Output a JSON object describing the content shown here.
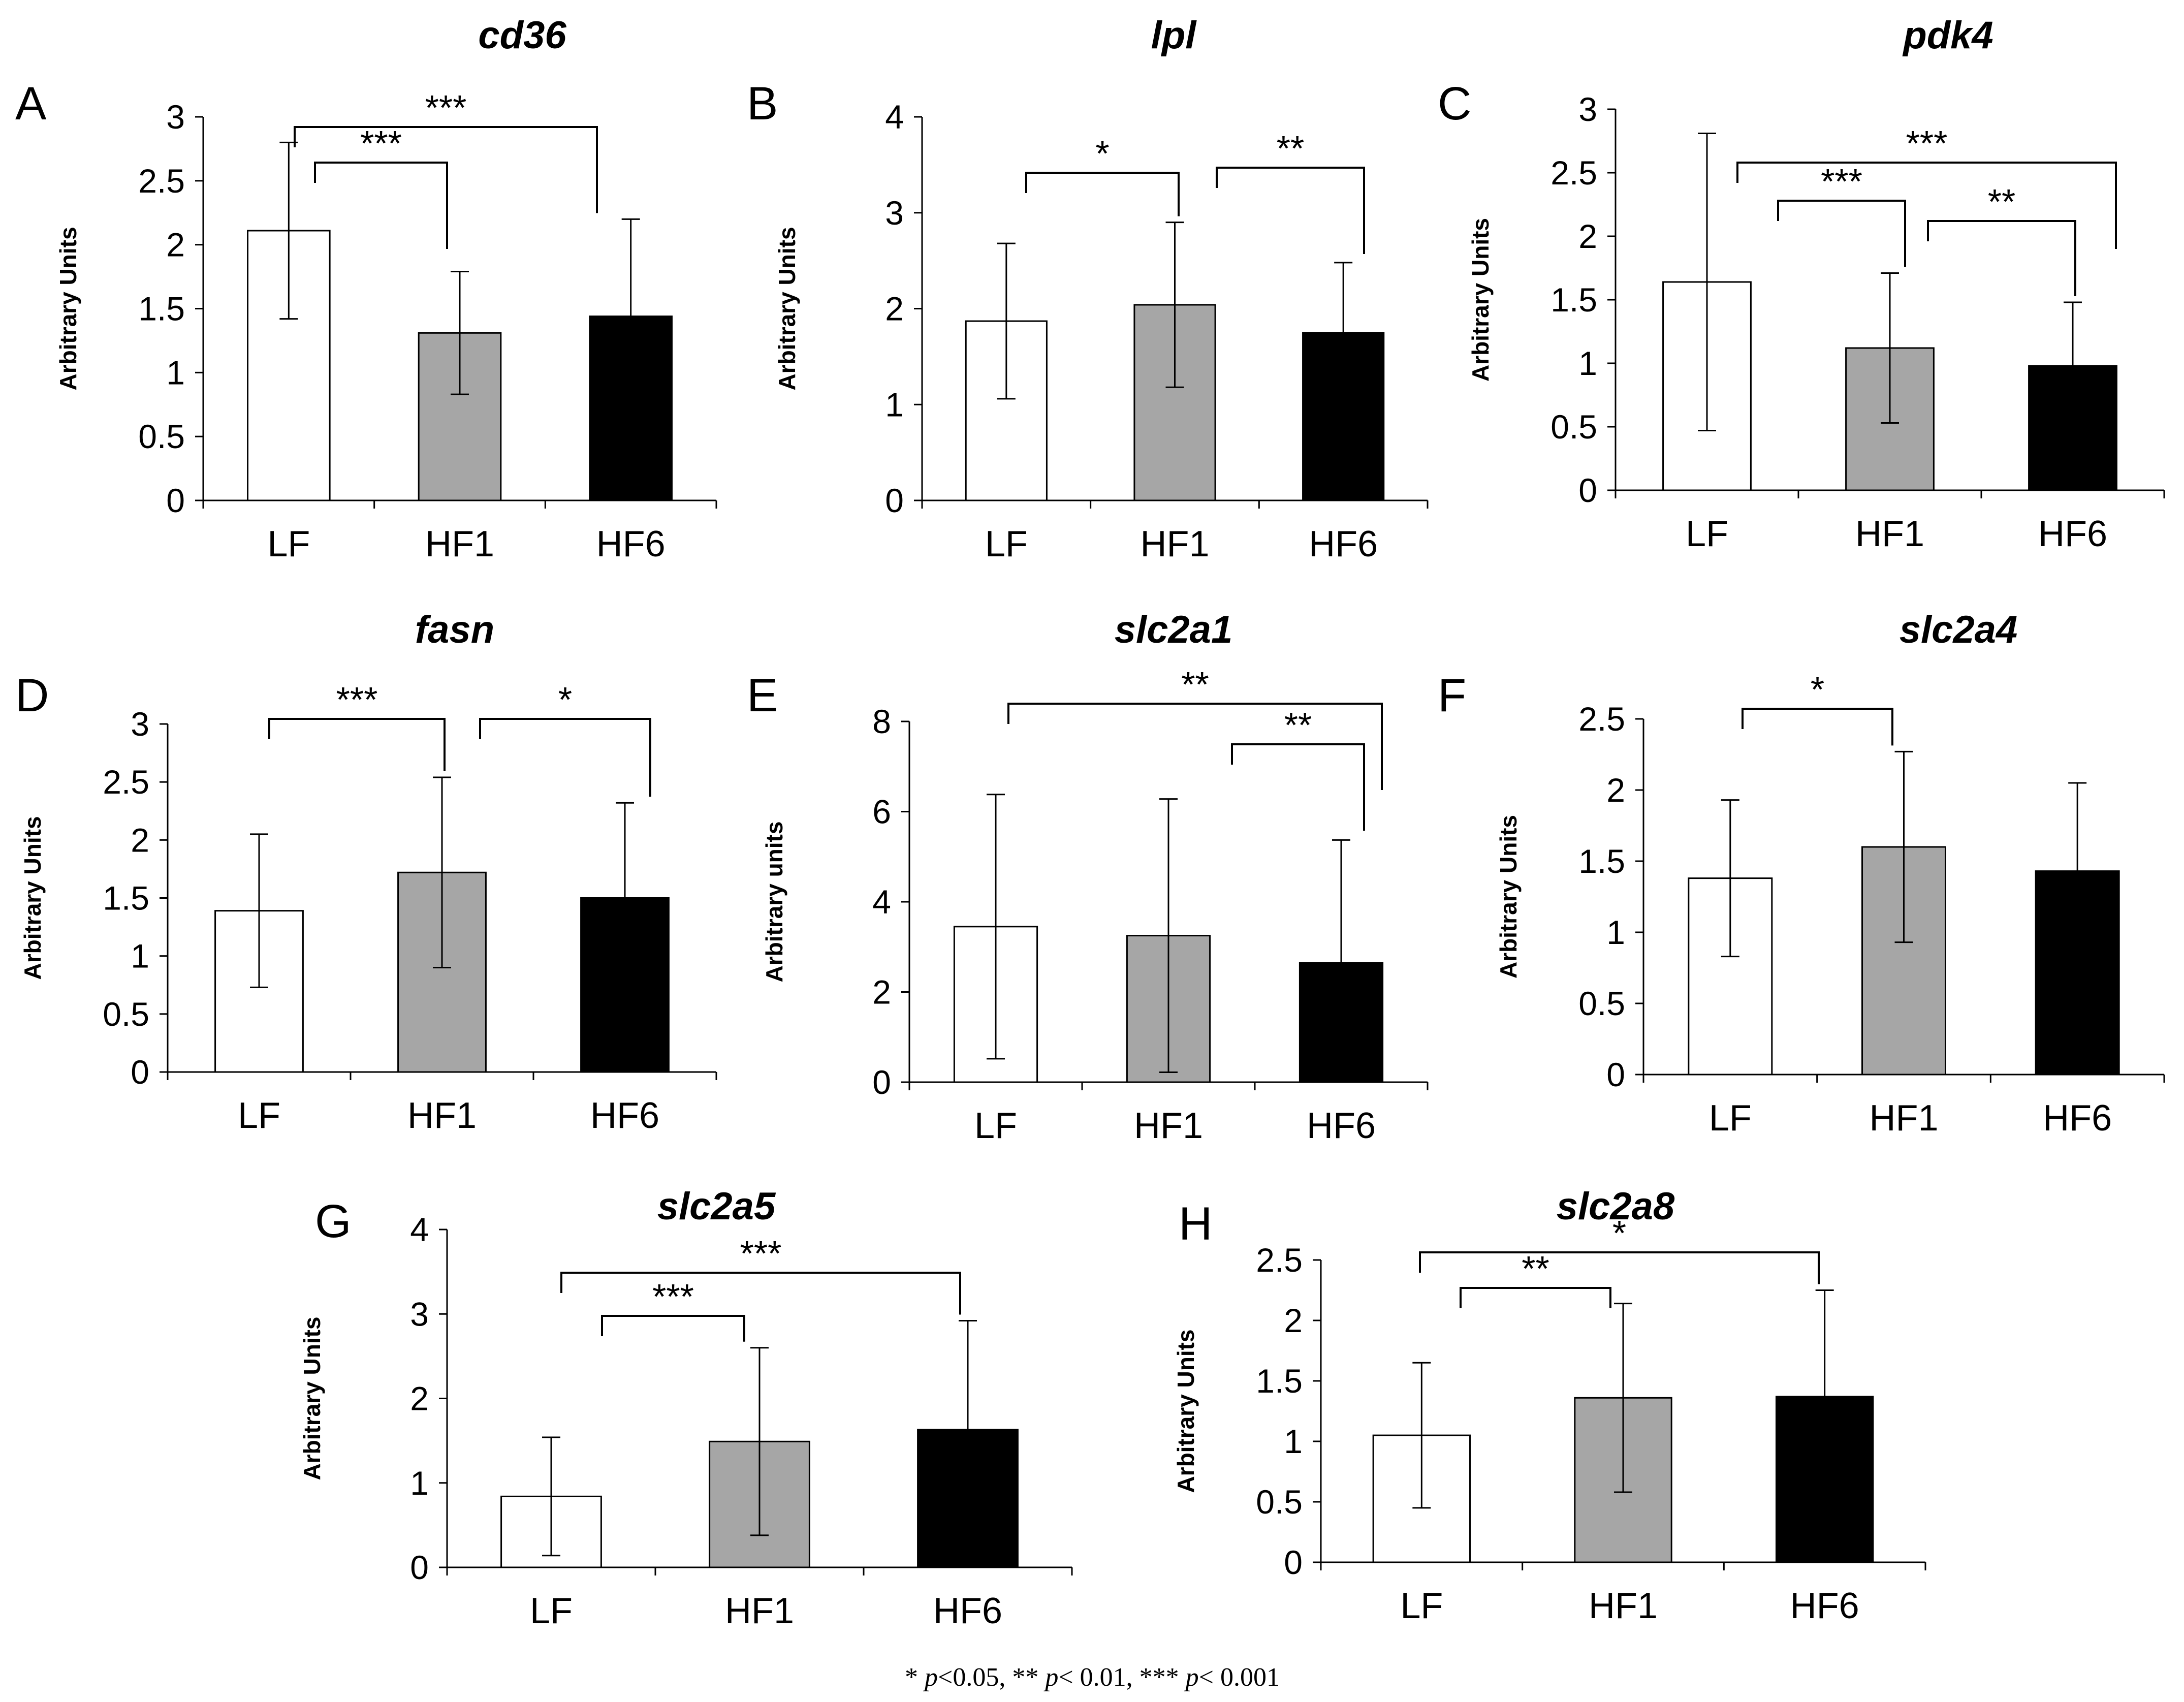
{
  "chart_data": [
    {
      "type": "bar",
      "letter": "A",
      "title": "cd36",
      "ylabel": "Arbitrary Units",
      "categories": [
        "LF",
        "HF1",
        "HF6"
      ],
      "values": [
        2.11,
        1.31,
        1.44
      ],
      "errors": [
        0.69,
        0.48,
        0.76
      ],
      "ylim": [
        0,
        3
      ],
      "yticks": [
        "0",
        "0.5",
        "1",
        "1.5",
        "2",
        "2.5",
        "3"
      ],
      "colors": [
        "#ffffff",
        "#a6a6a6",
        "#000000"
      ],
      "brackets": [
        {
          "from": 0,
          "to": 1,
          "label": "***"
        },
        {
          "from": 0,
          "to": 2,
          "label": "***"
        }
      ]
    },
    {
      "type": "bar",
      "letter": "B",
      "title": "lpl",
      "ylabel": "Arbitrary Units",
      "categories": [
        "LF",
        "HF1",
        "HF6"
      ],
      "values": [
        1.87,
        2.04,
        1.75
      ],
      "errors": [
        0.81,
        0.86,
        0.73
      ],
      "ylim": [
        0,
        4
      ],
      "yticks": [
        "0",
        "1",
        "2",
        "3",
        "4"
      ],
      "colors": [
        "#ffffff",
        "#a6a6a6",
        "#000000"
      ],
      "brackets": [
        {
          "from": 0,
          "to": 1,
          "label": "*"
        },
        {
          "from": 1,
          "to": 2,
          "label": "**"
        }
      ]
    },
    {
      "type": "bar",
      "letter": "C",
      "title": "pdk4",
      "ylabel": "Arbitrary Units",
      "categories": [
        "LF",
        "HF1",
        "HF6"
      ],
      "values": [
        1.64,
        1.12,
        0.98
      ],
      "errors": [
        1.17,
        0.59,
        0.5
      ],
      "ylim": [
        0,
        3
      ],
      "yticks": [
        "0",
        "0.5",
        "1",
        "1.5",
        "2",
        "2.5",
        "3"
      ],
      "colors": [
        "#ffffff",
        "#a6a6a6",
        "#000000"
      ],
      "brackets": [
        {
          "from": 0,
          "to": 1,
          "label": "***"
        },
        {
          "from": 1,
          "to": 2,
          "label": "**"
        },
        {
          "from": 0,
          "to": 2,
          "label": "***"
        }
      ]
    },
    {
      "type": "bar",
      "letter": "D",
      "title": "fasn",
      "ylabel": "Arbitrary Units",
      "categories": [
        "LF",
        "HF1",
        "HF6"
      ],
      "values": [
        1.39,
        1.72,
        1.5
      ],
      "errors": [
        0.66,
        0.82,
        0.82
      ],
      "ylim": [
        0,
        3
      ],
      "yticks": [
        "0",
        "0.5",
        "1",
        "1.5",
        "2",
        "2.5",
        "3"
      ],
      "colors": [
        "#ffffff",
        "#a6a6a6",
        "#000000"
      ],
      "brackets": [
        {
          "from": 0,
          "to": 1,
          "label": "***"
        },
        {
          "from": 1,
          "to": 2,
          "label": "*"
        }
      ]
    },
    {
      "type": "bar",
      "letter": "E",
      "title": "slc2a1",
      "ylabel": "Arbitrary units",
      "categories": [
        "LF",
        "HF1",
        "HF6"
      ],
      "values": [
        3.45,
        3.25,
        2.65
      ],
      "errors": [
        2.93,
        3.03,
        2.72
      ],
      "ylim": [
        0,
        8
      ],
      "yticks": [
        "0",
        "2",
        "4",
        "6",
        "8"
      ],
      "colors": [
        "#ffffff",
        "#a6a6a6",
        "#000000"
      ],
      "brackets": [
        {
          "from": 1,
          "to": 2,
          "label": "**"
        },
        {
          "from": 0,
          "to": 2,
          "label": "**"
        }
      ]
    },
    {
      "type": "bar",
      "letter": "F",
      "title": "slc2a4",
      "ylabel": "Arbitrary Units",
      "categories": [
        "LF",
        "HF1",
        "HF6"
      ],
      "values": [
        1.38,
        1.6,
        1.43
      ],
      "errors": [
        0.55,
        0.67,
        0.62
      ],
      "ylim": [
        0,
        2.5
      ],
      "yticks": [
        "0",
        "0.5",
        "1",
        "1.5",
        "2",
        "2.5"
      ],
      "colors": [
        "#ffffff",
        "#a6a6a6",
        "#000000"
      ],
      "brackets": [
        {
          "from": 0,
          "to": 1,
          "label": "*"
        }
      ]
    },
    {
      "type": "bar",
      "letter": "G",
      "title": "slc2a5",
      "ylabel": "Arbitrary Units",
      "categories": [
        "LF",
        "HF1",
        "HF6"
      ],
      "values": [
        0.84,
        1.49,
        1.63
      ],
      "errors": [
        0.7,
        1.11,
        1.29
      ],
      "ylim": [
        0,
        4
      ],
      "yticks": [
        "0",
        "1",
        "2",
        "3",
        "4"
      ],
      "colors": [
        "#ffffff",
        "#a6a6a6",
        "#000000"
      ],
      "brackets": [
        {
          "from": 0,
          "to": 1,
          "label": "***"
        },
        {
          "from": 0,
          "to": 2,
          "label": "***"
        }
      ]
    },
    {
      "type": "bar",
      "letter": "H",
      "title": "slc2a8",
      "ylabel": "Arbitrary Units",
      "categories": [
        "LF",
        "HF1",
        "HF6"
      ],
      "values": [
        1.05,
        1.36,
        1.37
      ],
      "errors": [
        0.6,
        0.78,
        0.88
      ],
      "ylim": [
        0,
        2.5
      ],
      "yticks": [
        "0",
        "0.5",
        "1",
        "1.5",
        "2",
        "2.5"
      ],
      "colors": [
        "#ffffff",
        "#a6a6a6",
        "#000000"
      ],
      "brackets": [
        {
          "from": 0,
          "to": 1,
          "label": "**"
        },
        {
          "from": 0,
          "to": 2,
          "label": "*"
        }
      ]
    }
  ],
  "footnote": {
    "parts": [
      {
        "text": "* ",
        "italic": false
      },
      {
        "text": "p",
        "italic": true
      },
      {
        "text": "<0.05, ** ",
        "italic": false
      },
      {
        "text": "p",
        "italic": true
      },
      {
        "text": "< 0.01, *** ",
        "italic": false
      },
      {
        "text": "p",
        "italic": true
      },
      {
        "text": "< 0.001",
        "italic": false
      }
    ]
  }
}
